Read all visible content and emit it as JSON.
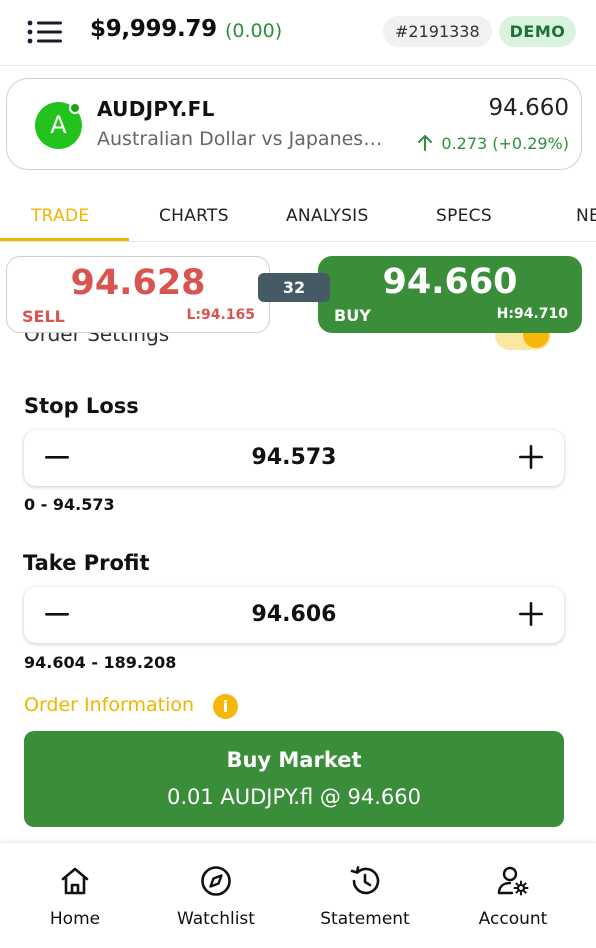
{
  "header": {
    "balance": "$9,999.79",
    "balance_change": "(0.00)",
    "account_id": "#2191338",
    "mode_badge": "DEMO"
  },
  "symbol": {
    "avatar_letter": "A",
    "name": "AUDJPY.FL",
    "description": "Australian Dollar vs Japanese Yen",
    "price": "94.660",
    "change": "0.273 (+0.29%)"
  },
  "tabs": [
    {
      "label": "TRADE",
      "active": true
    },
    {
      "label": "CHARTS",
      "active": false
    },
    {
      "label": "ANALYSIS",
      "active": false
    },
    {
      "label": "SPECS",
      "active": false
    },
    {
      "label": "NEWS",
      "active": false
    }
  ],
  "order_settings": {
    "label": "Order Settings",
    "toggle_on": true
  },
  "prices": {
    "sell_price": "94.628",
    "sell_label": "SELL",
    "low": "L:94.165",
    "spread": "32",
    "buy_price": "94.660",
    "buy_label": "BUY",
    "high": "H:94.710"
  },
  "stop_loss": {
    "title": "Stop Loss",
    "value": "94.573",
    "range": "0 - 94.573"
  },
  "take_profit": {
    "title": "Take Profit",
    "value": "94.606",
    "range": "94.604 - 189.208"
  },
  "order_info": {
    "label": "Order Information",
    "icon": "i"
  },
  "action": {
    "title": "Buy Market",
    "subtitle": "0.01 AUDJPY.fl @ 94.660"
  },
  "bottom_nav": [
    {
      "label": "Home",
      "icon": "home-icon"
    },
    {
      "label": "Watchlist",
      "icon": "compass-icon"
    },
    {
      "label": "Statement",
      "icon": "history-icon"
    },
    {
      "label": "Account",
      "icon": "user-settings-icon"
    }
  ],
  "colors": {
    "accent": "#f0b400",
    "buy": "#3a8e3a",
    "sell": "#d9534f",
    "positive": "#2e8f3b",
    "spread_bg": "#455a64"
  }
}
